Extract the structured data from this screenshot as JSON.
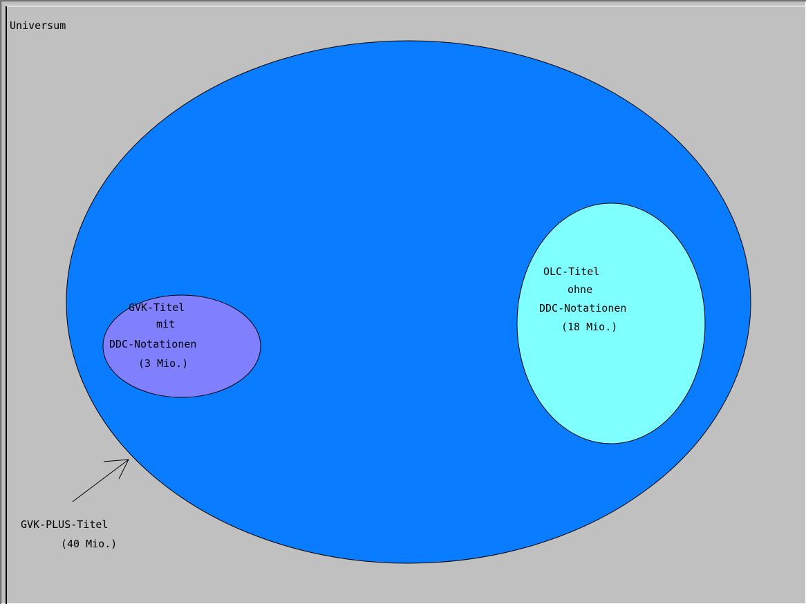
{
  "universe_label": "Universum",
  "sets": {
    "gvk_plus": {
      "label": [
        "GVK-PLUS-Titel",
        "(40 Mio.)"
      ],
      "color": "#0a7cff"
    },
    "gvk_ddc": {
      "label": [
        "GVK-Titel",
        "mit",
        "DDC-Notationen",
        "(3 Mio.)"
      ],
      "color": "#8080ff"
    },
    "olc_no_ddc": {
      "label": [
        "OLC-Titel",
        "ohne",
        "DDC-Notationen",
        "(18 Mio.)"
      ],
      "color": "#80ffff"
    }
  },
  "colors": {
    "universe_background": "#c0c0c0",
    "outline": "#000000"
  }
}
